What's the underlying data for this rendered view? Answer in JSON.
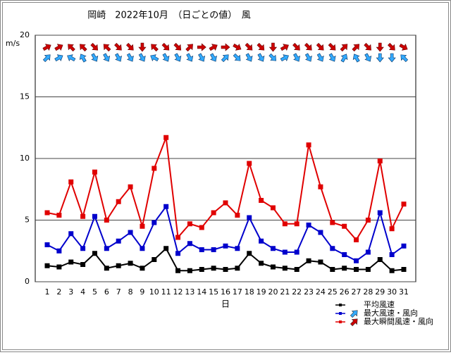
{
  "chart_data": {
    "type": "line",
    "title": "岡崎　2022年10月　（日ごとの値）　風",
    "y_label": "m/s",
    "x_label": "日",
    "categories": [
      1,
      2,
      3,
      4,
      5,
      6,
      7,
      8,
      9,
      10,
      11,
      12,
      13,
      14,
      15,
      16,
      17,
      18,
      19,
      20,
      21,
      22,
      23,
      24,
      25,
      26,
      27,
      28,
      29,
      30,
      31
    ],
    "ylim": [
      0,
      20
    ],
    "yticks": [
      0,
      5,
      10,
      15,
      20
    ],
    "grid": true,
    "series": [
      {
        "name": "平均風速",
        "color": "#000000",
        "values": [
          1.3,
          1.2,
          1.6,
          1.4,
          2.3,
          1.1,
          1.3,
          1.5,
          1.1,
          1.8,
          2.7,
          0.9,
          0.9,
          1.0,
          1.1,
          1.0,
          1.1,
          2.3,
          1.5,
          1.2,
          1.1,
          1.0,
          1.7,
          1.6,
          1.0,
          1.1,
          1.0,
          1.0,
          1.8,
          0.9,
          1.0
        ]
      },
      {
        "name": "最大風速・風向",
        "color": "#0000cc",
        "arrow_color": "#33aaff",
        "values": [
          3.0,
          2.5,
          3.9,
          2.7,
          5.3,
          2.7,
          3.3,
          4.0,
          2.7,
          4.8,
          6.1,
          2.3,
          3.1,
          2.6,
          2.6,
          2.9,
          2.7,
          5.2,
          3.3,
          2.7,
          2.4,
          2.4,
          4.6,
          4.0,
          2.7,
          2.2,
          1.7,
          2.4,
          5.6,
          2.2,
          2.9
        ],
        "directions": [
          45,
          60,
          300,
          330,
          150,
          150,
          150,
          150,
          150,
          300,
          150,
          150,
          150,
          150,
          150,
          45,
          135,
          150,
          150,
          135,
          60,
          150,
          150,
          150,
          150,
          30,
          330,
          150,
          180,
          180,
          315
        ]
      },
      {
        "name": "最大瞬間風速・風向",
        "color": "#e00000",
        "arrow_color": "#cc0000",
        "values": [
          5.6,
          5.4,
          8.1,
          5.3,
          8.9,
          5.0,
          6.5,
          7.7,
          4.5,
          9.2,
          11.7,
          3.6,
          4.7,
          4.4,
          5.6,
          6.4,
          5.4,
          9.6,
          6.6,
          6.0,
          4.7,
          4.7,
          11.1,
          7.7,
          4.8,
          4.5,
          3.4,
          5.0,
          9.8,
          4.3,
          6.3
        ],
        "directions": [
          60,
          60,
          315,
          315,
          135,
          315,
          135,
          135,
          180,
          315,
          135,
          135,
          45,
          90,
          60,
          90,
          120,
          135,
          135,
          180,
          60,
          135,
          135,
          135,
          135,
          45,
          45,
          135,
          180,
          135,
          120
        ]
      }
    ]
  }
}
